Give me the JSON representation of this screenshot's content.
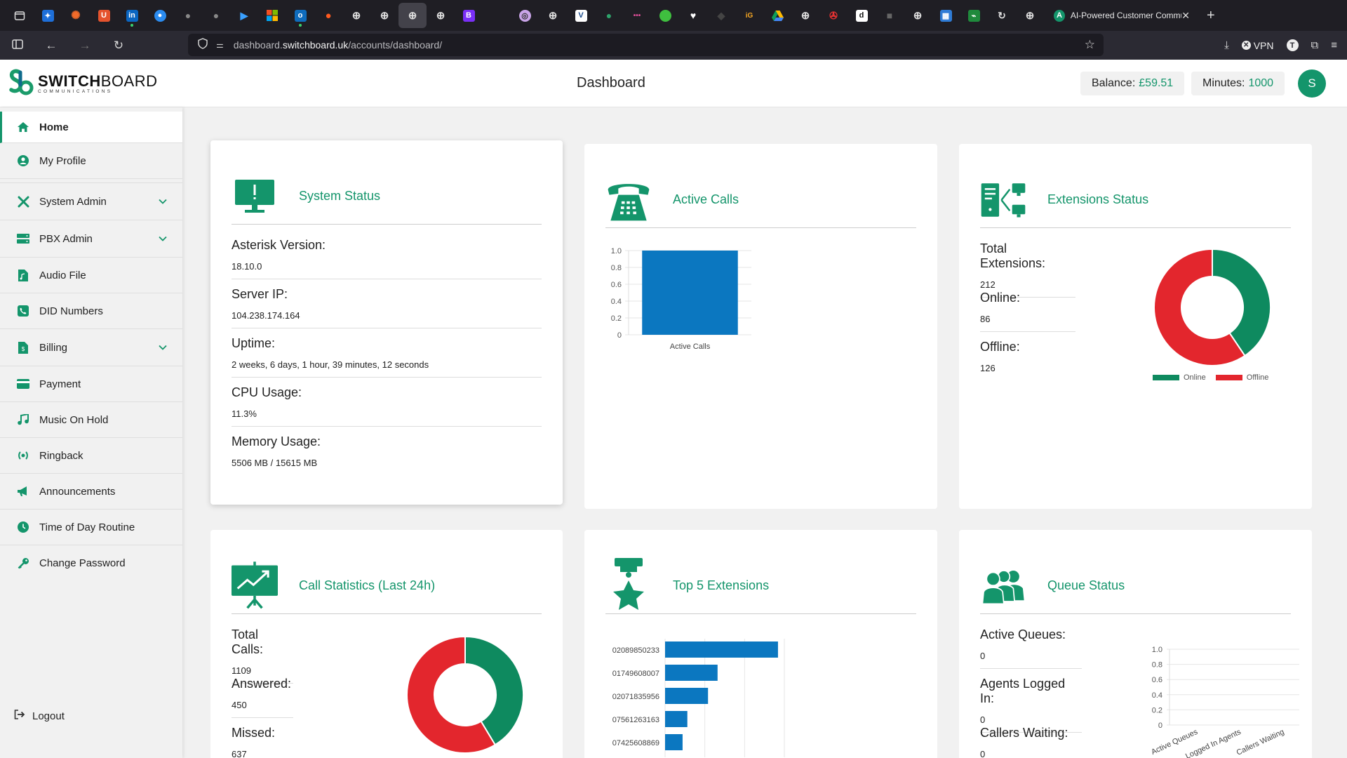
{
  "browser": {
    "active_tab_title": "AI-Powered Customer Commun",
    "url_host_prefix": "dashboard.",
    "url_host_main": "switchboard.uk",
    "url_path": "/accounts/dashboard/",
    "vpn_label": "VPN"
  },
  "header": {
    "logo_main": "SWITCH",
    "logo_main_bold_end": "BOARD",
    "logo_sub": "COMMUNICATIONS",
    "title": "Dashboard",
    "balance_label": "Balance:",
    "balance_value": "£59.51",
    "minutes_label": "Minutes:",
    "minutes_value": "1000",
    "avatar_letter": "S"
  },
  "sidebar": {
    "items": [
      {
        "label": "Home"
      },
      {
        "label": "My Profile"
      },
      {
        "label": "System Admin"
      },
      {
        "label": "PBX Admin"
      },
      {
        "label": "Audio File"
      },
      {
        "label": "DID Numbers"
      },
      {
        "label": "Billing"
      },
      {
        "label": "Payment"
      },
      {
        "label": "Music On Hold"
      },
      {
        "label": "Ringback"
      },
      {
        "label": "Announcements"
      },
      {
        "label": "Time of Day Routine"
      },
      {
        "label": "Change Password"
      }
    ],
    "logout_label": "Logout"
  },
  "system_status": {
    "title": "System Status",
    "asterisk_label": "Asterisk Version:",
    "asterisk_value": "18.10.0",
    "ip_label": "Server IP:",
    "ip_value": "104.238.174.164",
    "uptime_label": "Uptime:",
    "uptime_value": "2 weeks, 6 days, 1 hour, 39 minutes, 12 seconds",
    "cpu_label": "CPU Usage:",
    "cpu_value": "11.3%",
    "memory_label": "Memory Usage:",
    "memory_value": "5506 MB / 15615 MB"
  },
  "active_calls": {
    "title": "Active Calls"
  },
  "extensions_status": {
    "title": "Extensions Status",
    "total_label": "Total Extensions:",
    "total_value": "212",
    "online_label": "Online:",
    "online_value": "86",
    "offline_label": "Offline:",
    "offline_value": "126"
  },
  "call_statistics": {
    "title": "Call Statistics (Last 24h)",
    "total_label": "Total Calls:",
    "total_value": "1109",
    "answered_label": "Answered:",
    "answered_value": "450",
    "missed_label": "Missed:",
    "missed_value": "637"
  },
  "top_extensions": {
    "title": "Top 5 Extensions"
  },
  "queue_status": {
    "title": "Queue Status",
    "active_label": "Active Queues:",
    "active_value": "0",
    "agents_label": "Agents Logged In:",
    "agents_value": "0",
    "callers_label": "Callers Waiting:",
    "callers_value": "0"
  },
  "colors": {
    "accent": "#14956b",
    "online": "#0e8a5f",
    "offline": "#e3262d",
    "bar": "#0b77c0"
  },
  "chart_data": [
    {
      "id": "active_calls",
      "type": "bar",
      "categories": [
        "Active Calls"
      ],
      "values": [
        1
      ],
      "ylim": [
        0,
        1
      ],
      "yticks": [
        "1.0",
        "0.8",
        "0.6",
        "0.4",
        "0.2",
        "0"
      ],
      "grid": true
    },
    {
      "id": "extensions_status",
      "type": "pie",
      "donut": true,
      "labels": [
        "Online",
        "Offline"
      ],
      "values": [
        86,
        126
      ],
      "colors": [
        "#0e8a5f",
        "#e3262d"
      ],
      "legend": "bottom"
    },
    {
      "id": "call_statistics",
      "type": "pie",
      "donut": true,
      "labels": [
        "Answered",
        "Missed"
      ],
      "values": [
        450,
        637
      ],
      "colors": [
        "#0e8a5f",
        "#e3262d"
      ]
    },
    {
      "id": "top_extensions",
      "type": "bar",
      "orientation": "horizontal",
      "categories": [
        "02089850233",
        "01749608007",
        "02071835956",
        "07561263163",
        "07425608869"
      ],
      "values": [
        142,
        66,
        54,
        28,
        22
      ],
      "xlim": [
        0,
        150
      ],
      "xticks": [
        "0",
        "50",
        "100",
        "150"
      ],
      "grid": true
    },
    {
      "id": "queue_status",
      "type": "bar",
      "categories": [
        "Active Queues",
        "Logged In Agents",
        "Callers Waiting"
      ],
      "values": [
        0,
        0,
        0
      ],
      "ylim": [
        0,
        1
      ],
      "yticks": [
        "1.0",
        "0.8",
        "0.6",
        "0.4",
        "0.2",
        "0"
      ],
      "grid": true
    }
  ]
}
